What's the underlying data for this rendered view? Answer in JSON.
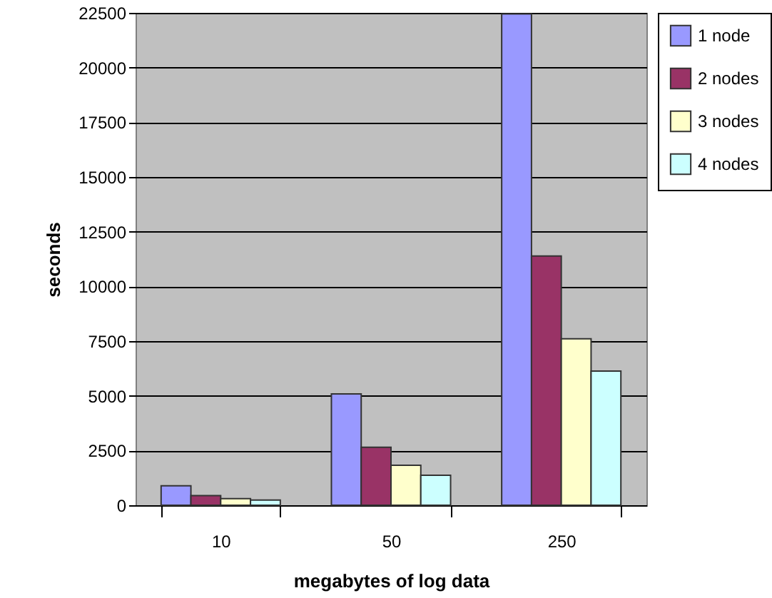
{
  "chart_data": {
    "type": "bar",
    "xlabel": "megabytes of log data",
    "ylabel": "seconds",
    "categories": [
      "10",
      "50",
      "250"
    ],
    "series": [
      {
        "name": "1 node",
        "color": "#9999ff",
        "values": [
          890,
          5090,
          22450
        ]
      },
      {
        "name": "2 nodes",
        "color": "#993366",
        "values": [
          440,
          2650,
          11390
        ]
      },
      {
        "name": "3 nodes",
        "color": "#ffffcc",
        "values": [
          300,
          1830,
          7610
        ]
      },
      {
        "name": "4 nodes",
        "color": "#ccffff",
        "values": [
          240,
          1370,
          6130
        ]
      }
    ],
    "ylim": [
      0,
      22500
    ],
    "yticks": [
      0,
      2500,
      5000,
      7500,
      10000,
      12500,
      15000,
      17500,
      20000,
      22500
    ],
    "grid": "y",
    "legend": "right"
  }
}
